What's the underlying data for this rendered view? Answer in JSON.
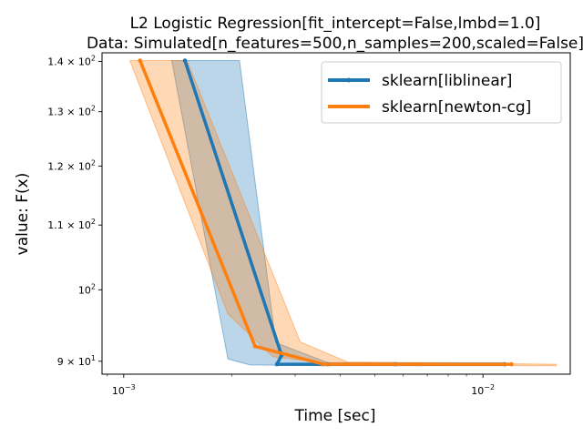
{
  "chart_data": {
    "type": "line",
    "title": "L2 Logistic Regression[fit_intercept=False,lmbd=1.0]",
    "subtitle": "Data: Simulated[n_features=500,n_samples=200,scaled=False]",
    "xlabel": "Time [sec]",
    "ylabel": "value: F(x)",
    "xscale": "log",
    "yscale": "log",
    "xlim": [
      0.00087,
      0.0175
    ],
    "ylim": [
      88.3,
      141.8
    ],
    "grid": false,
    "legend_position": "top-right",
    "x_tick_labels": [
      {
        "value": 0.001,
        "base": "10",
        "exp": "−3"
      },
      {
        "value": 0.01,
        "base": "10",
        "exp": "−2"
      }
    ],
    "y_tick_labels": [
      {
        "value": 140,
        "mant": "1.4 × 10",
        "exp": "2"
      },
      {
        "value": 130,
        "mant": "1.3 × 10",
        "exp": "2"
      },
      {
        "value": 120,
        "mant": "1.2 × 10",
        "exp": "2"
      },
      {
        "value": 110,
        "mant": "1.1 × 10",
        "exp": "2"
      },
      {
        "value": 100,
        "mant": "10",
        "exp": "2"
      },
      {
        "value": 90,
        "mant": "9 × 10",
        "exp": "1"
      }
    ],
    "series": [
      {
        "name": "sklearn[liblinear]",
        "color": "#1f77b4",
        "marker": "dot",
        "points": [
          [
            0.00148,
            140.2
          ],
          [
            0.00275,
            90.8
          ],
          [
            0.00267,
            89.6
          ],
          [
            0.0037,
            89.6
          ],
          [
            0.0057,
            89.6
          ],
          [
            0.0115,
            89.6
          ]
        ],
        "band_upper": [
          [
            0.00136,
            140.2
          ],
          [
            0.0021,
            140.2
          ],
          [
            0.00265,
            92.5
          ],
          [
            0.0037,
            89.8
          ],
          [
            0.0115,
            89.8
          ]
        ],
        "band_lower": [
          [
            0.00195,
            90.3
          ],
          [
            0.00225,
            89.5
          ],
          [
            0.0037,
            89.4
          ],
          [
            0.0115,
            89.4
          ]
        ]
      },
      {
        "name": "sklearn[newton-cg]",
        "color": "#ff7f0e",
        "marker": "dot",
        "points": [
          [
            0.00111,
            140.2
          ],
          [
            0.00232,
            92.0
          ],
          [
            0.0036,
            89.6
          ],
          [
            0.0066,
            89.6
          ],
          [
            0.012,
            89.6
          ]
        ],
        "band_upper": [
          [
            0.00104,
            140.2
          ],
          [
            0.0015,
            140.2
          ],
          [
            0.0031,
            92.6
          ],
          [
            0.0042,
            89.9
          ],
          [
            0.016,
            89.6
          ]
        ],
        "band_lower": [
          [
            0.00195,
            96.5
          ],
          [
            0.0026,
            90.6
          ],
          [
            0.004,
            89.5
          ],
          [
            0.016,
            89.4
          ]
        ]
      }
    ]
  }
}
